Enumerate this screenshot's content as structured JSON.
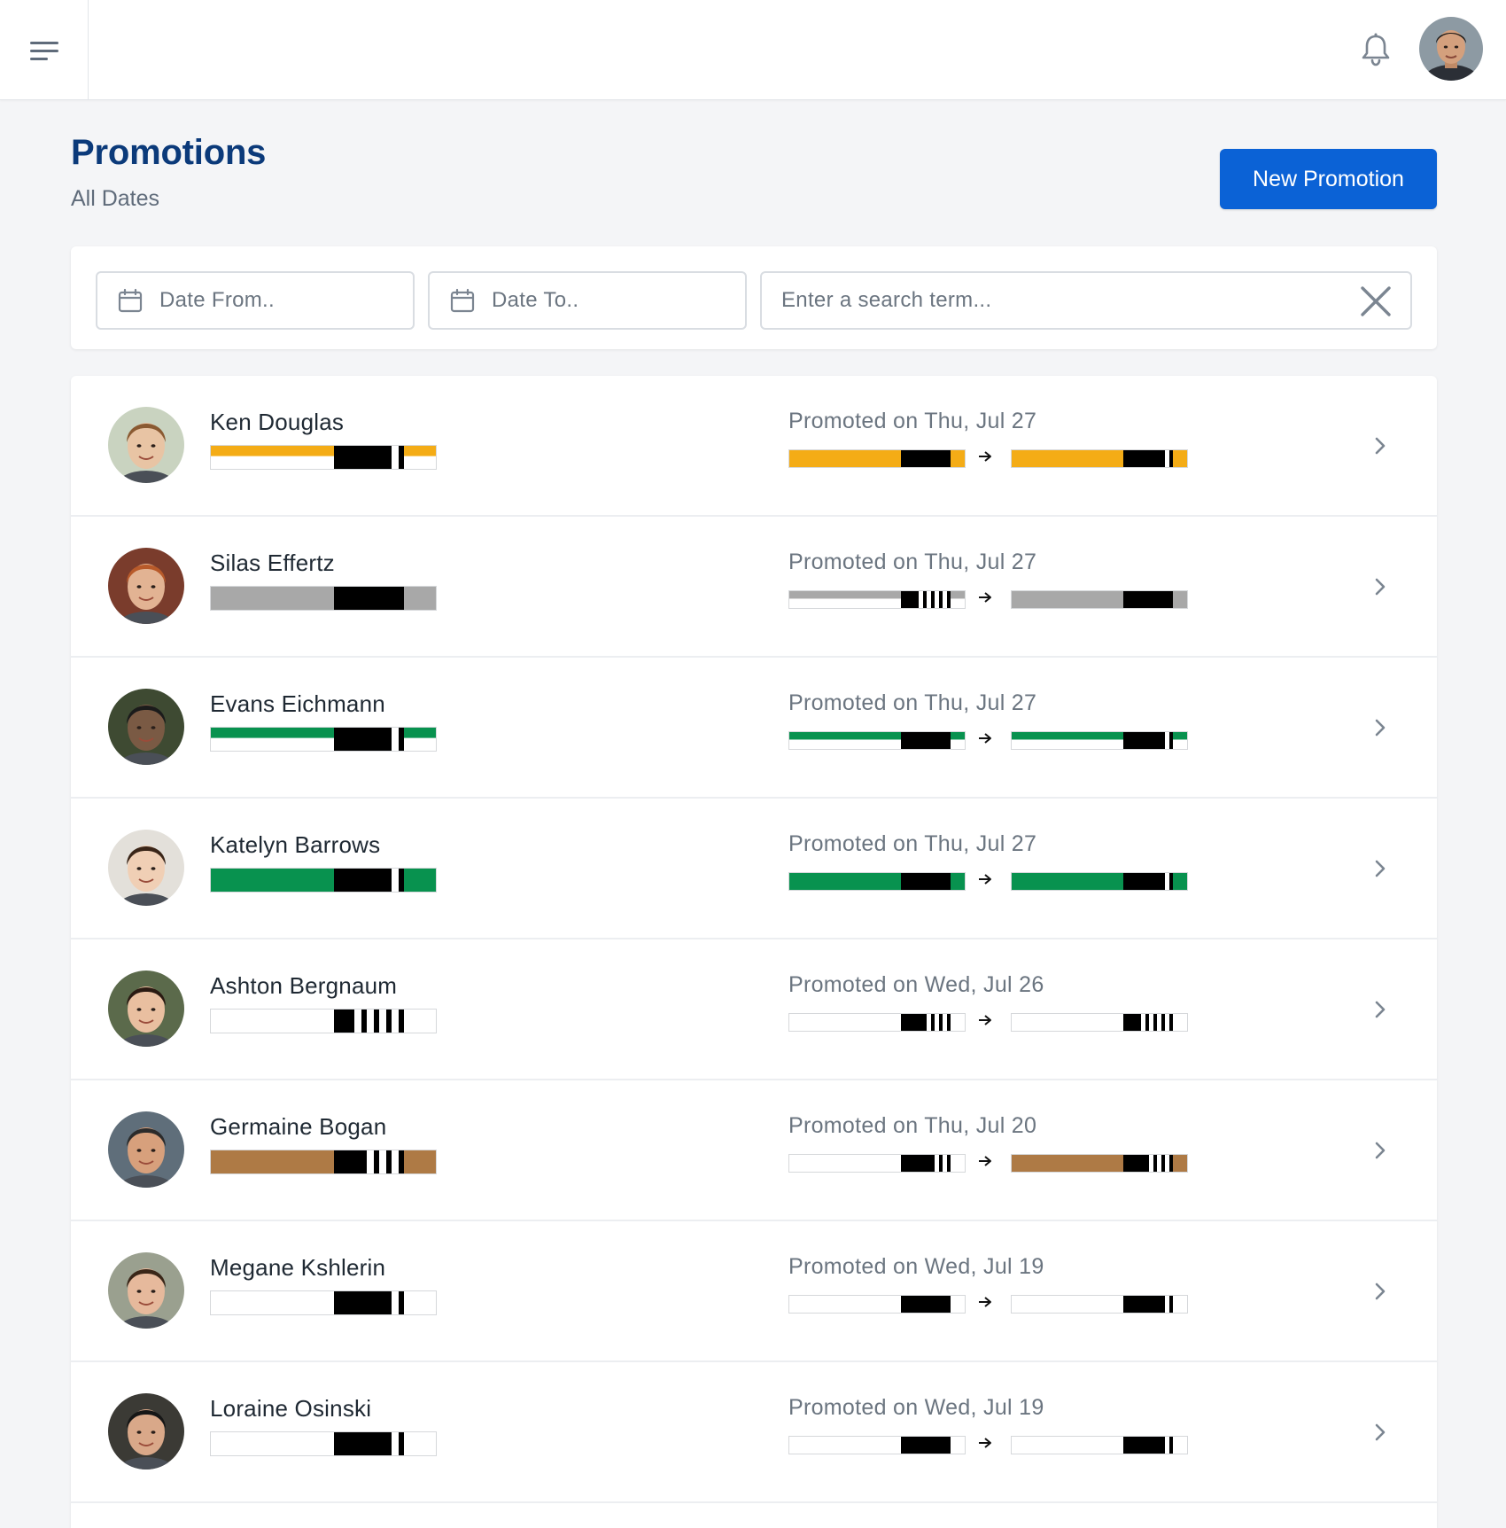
{
  "header": {
    "title": "Promotions",
    "subtitle": "All Dates",
    "new_button": "New Promotion"
  },
  "filters": {
    "date_from_placeholder": "Date From..",
    "date_to_placeholder": "Date To..",
    "search_placeholder": "Enter a search term..."
  },
  "icons": {
    "menu": "menu-icon",
    "bell": "bell-icon",
    "calendar": "calendar-icon",
    "clear": "close-icon",
    "chevron": "chevron-right-icon",
    "arrow": "arrow-right-icon"
  },
  "colors": {
    "primary": "#0b62d6",
    "title": "#0b3a7a",
    "belt_yellow": "#f4ac16",
    "belt_gray": "#a8a8a8",
    "belt_green": "#08924f",
    "belt_brown": "#ae7a45",
    "belt_white": "#ffffff",
    "belt_black": "#000000"
  },
  "promotions": [
    {
      "name": "Ken Douglas",
      "date": "Promoted on Thu, Jul 27",
      "current": {
        "color": "#f4ac16",
        "stripe": "half",
        "stripes": 1
      },
      "from": {
        "color": "#f4ac16",
        "stripe": "full",
        "stripes": 0
      },
      "to": {
        "color": "#f4ac16",
        "stripe": "full",
        "stripes": 1
      }
    },
    {
      "name": "Silas Effertz",
      "date": "Promoted on Thu, Jul 27",
      "current": {
        "color": "#a8a8a8",
        "stripe": "full",
        "stripes": 0
      },
      "from": {
        "color": "#a8a8a8",
        "stripe": "half",
        "stripes": 4
      },
      "to": {
        "color": "#a8a8a8",
        "stripe": "full",
        "stripes": 0
      }
    },
    {
      "name": "Evans Eichmann",
      "date": "Promoted on Thu, Jul 27",
      "current": {
        "color": "#08924f",
        "stripe": "half",
        "stripes": 1
      },
      "from": {
        "color": "#08924f",
        "stripe": "half",
        "stripes": 0
      },
      "to": {
        "color": "#08924f",
        "stripe": "half",
        "stripes": 1
      }
    },
    {
      "name": "Katelyn Barrows",
      "date": "Promoted on Thu, Jul 27",
      "current": {
        "color": "#08924f",
        "stripe": "full",
        "stripes": 1
      },
      "from": {
        "color": "#08924f",
        "stripe": "full",
        "stripes": 0
      },
      "to": {
        "color": "#08924f",
        "stripe": "full",
        "stripes": 1
      }
    },
    {
      "name": "Ashton Bergnaum",
      "date": "Promoted on Wed, Jul 26",
      "current": {
        "color": "#ffffff",
        "stripe": "full",
        "stripes": 4
      },
      "from": {
        "color": "#ffffff",
        "stripe": "full",
        "stripes": 3
      },
      "to": {
        "color": "#ffffff",
        "stripe": "full",
        "stripes": 4
      }
    },
    {
      "name": "Germaine Bogan",
      "date": "Promoted on Thu, Jul 20",
      "current": {
        "color": "#ae7a45",
        "stripe": "full",
        "stripes": 3
      },
      "from": {
        "color": "#ffffff",
        "stripe": "full",
        "stripes": 2
      },
      "to": {
        "color": "#ae7a45",
        "stripe": "full",
        "stripes": 3
      }
    },
    {
      "name": "Megane Kshlerin",
      "date": "Promoted on Wed, Jul 19",
      "current": {
        "color": "#ffffff",
        "stripe": "full",
        "stripes": 1
      },
      "from": {
        "color": "#ffffff",
        "stripe": "full",
        "stripes": 0
      },
      "to": {
        "color": "#ffffff",
        "stripe": "full",
        "stripes": 1
      }
    },
    {
      "name": "Loraine Osinski",
      "date": "Promoted on Wed, Jul 19",
      "current": {
        "color": "#ffffff",
        "stripe": "full",
        "stripes": 1
      },
      "from": {
        "color": "#ffffff",
        "stripe": "full",
        "stripes": 0
      },
      "to": {
        "color": "#ffffff",
        "stripe": "full",
        "stripes": 1
      }
    }
  ]
}
